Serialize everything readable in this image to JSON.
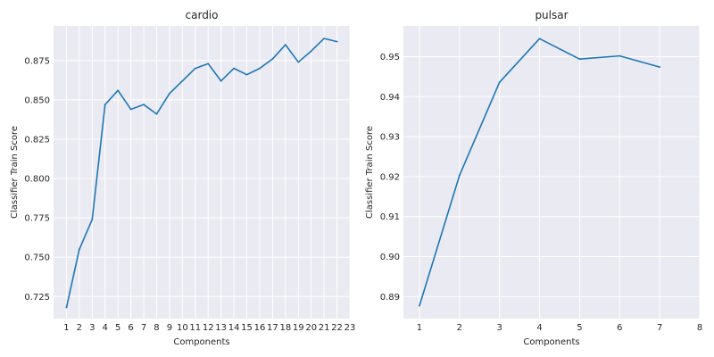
{
  "chart_data": [
    {
      "type": "line",
      "title": "cardio",
      "xlabel": "Components",
      "ylabel": "Classifier Train Score",
      "xlim": [
        0,
        23
      ],
      "ylim": [
        0.711,
        0.897
      ],
      "xticks": [
        1,
        2,
        3,
        4,
        5,
        6,
        7,
        8,
        9,
        10,
        11,
        12,
        13,
        14,
        15,
        16,
        17,
        18,
        19,
        20,
        21,
        22,
        23
      ],
      "yticks": [
        0.725,
        0.75,
        0.775,
        0.8,
        0.825,
        0.85,
        0.875
      ],
      "ytick_labels": [
        "0.725",
        "0.750",
        "0.775",
        "0.800",
        "0.825",
        "0.850",
        "0.875"
      ],
      "grid": true,
      "color": "#1f77b4",
      "series": [
        {
          "x": [
            1,
            2,
            3,
            4,
            5,
            6,
            7,
            8,
            9,
            10,
            11,
            12,
            13,
            14,
            15,
            16,
            17,
            18,
            19,
            20,
            21,
            22
          ],
          "values": [
            0.718,
            0.755,
            0.774,
            0.847,
            0.856,
            0.844,
            0.847,
            0.841,
            0.854,
            0.862,
            0.87,
            0.873,
            0.862,
            0.87,
            0.866,
            0.87,
            0.876,
            0.885,
            0.874,
            0.881,
            0.889,
            0.887
          ]
        }
      ]
    },
    {
      "type": "line",
      "title": "pulsar",
      "xlabel": "Components",
      "ylabel": "Classifier Train Score",
      "xlim": [
        0.6,
        8
      ],
      "ylim": [
        0.8845,
        0.9577
      ],
      "xticks": [
        1,
        2,
        3,
        4,
        5,
        6,
        7,
        8
      ],
      "yticks": [
        0.89,
        0.9,
        0.91,
        0.92,
        0.93,
        0.94,
        0.95
      ],
      "ytick_labels": [
        "0.89",
        "0.90",
        "0.91",
        "0.92",
        "0.93",
        "0.94",
        "0.95"
      ],
      "grid": true,
      "color": "#1f77b4",
      "series": [
        {
          "x": [
            1,
            2,
            3,
            4,
            5,
            6,
            7
          ],
          "values": [
            0.8877,
            0.9203,
            0.9436,
            0.9545,
            0.9494,
            0.9502,
            0.9474
          ]
        }
      ]
    }
  ]
}
